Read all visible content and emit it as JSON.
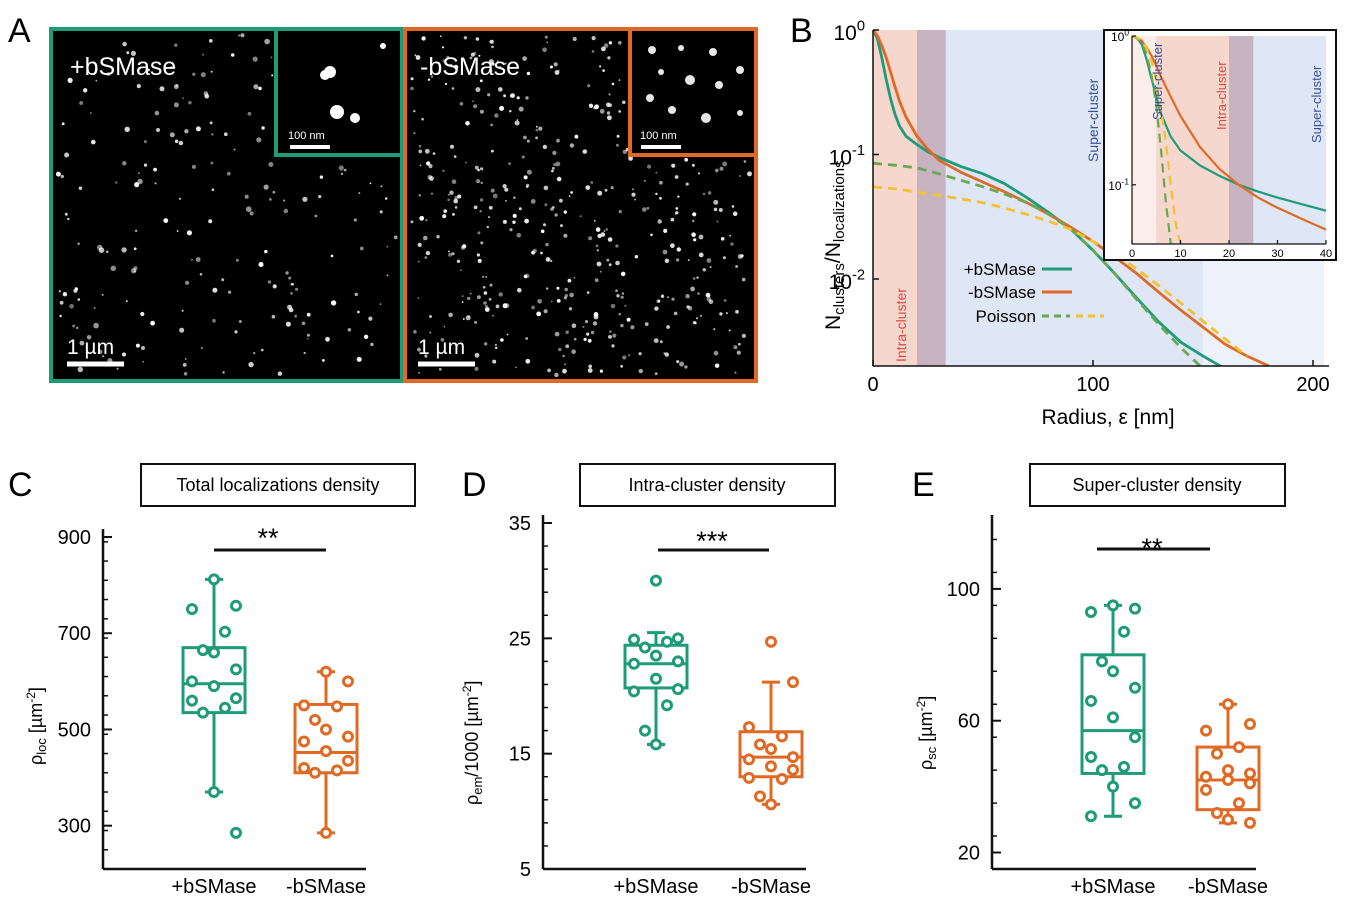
{
  "colors": {
    "green": "#1e9b78",
    "orange": "#e06a24",
    "poisson_green": "#6aa84f",
    "poisson_yellow": "#f2c230",
    "intra_fill": "#f2c9bd",
    "overlap_fill": "#c7b3bf",
    "super_fill": "#c9d5ee",
    "intra_text": "#d94a46",
    "super_text": "#3c4f9a"
  },
  "panels": {
    "A": {
      "letter": "A",
      "images": [
        {
          "label": "+bSMase",
          "scalebar": "1 µm",
          "inset_scalebar": "100 nm",
          "frame_color": "green"
        },
        {
          "label": "-bSMase",
          "scalebar": "1 µm",
          "inset_scalebar": "100 nm",
          "frame_color": "orange"
        }
      ]
    },
    "B": {
      "letter": "B",
      "ylabel_main": "N",
      "ylabel_sub1": "clusters",
      "ylabel_mid": "/N",
      "ylabel_sub2": "localizations",
      "xlabel": "Radius, ε [nm]",
      "region_intra": "Intra-cluster",
      "region_super": "Super-cluster",
      "inset_region_intra": "Intra-cluster",
      "inset_region_super_left": "Super-cluster",
      "inset_region_super_right": "Super-cluster",
      "legend": [
        "+bSMase",
        "-bSMase",
        "Poisson"
      ]
    },
    "C": {
      "letter": "C",
      "title": "Total localizations density",
      "ylabel_main": "ρ",
      "ylabel_sub": "loc",
      "ylabel_unit": " [µm",
      "ylabel_sup": "-2",
      "ylabel_close": "]",
      "sig": "**"
    },
    "D": {
      "letter": "D",
      "title": "Intra-cluster density",
      "ylabel_main": "ρ",
      "ylabel_sub": "em",
      "ylabel_unit": "/1000 [µm",
      "ylabel_sup": "-2",
      "ylabel_close": "]",
      "sig": "***"
    },
    "E": {
      "letter": "E",
      "title": "Super-cluster density",
      "ylabel_main": "ρ",
      "ylabel_sub": "sc",
      "ylabel_unit": " [µm",
      "ylabel_sup": "-2",
      "ylabel_close": "]",
      "sig": "**"
    }
  },
  "chart_data": [
    {
      "panel": "B",
      "type": "line",
      "x_ticks": [
        "0",
        "100",
        "200"
      ],
      "xlim": [
        0,
        200
      ],
      "y_scale": "log",
      "ylim": [
        0.002,
        1
      ],
      "y_ticks": [
        "10^0",
        "10^-1",
        "10^-2"
      ],
      "shaded_regions": [
        {
          "name": "Intra-cluster",
          "x": [
            0,
            33
          ]
        },
        {
          "name": "Super-cluster",
          "x": [
            20,
            205
          ]
        }
      ],
      "series": [
        {
          "name": "+bSMase",
          "color": "green",
          "dash": false,
          "x": [
            0,
            2,
            4,
            6,
            8,
            10,
            12,
            15,
            20,
            25,
            30,
            40,
            50,
            60,
            70,
            80,
            90,
            100,
            110,
            120,
            130,
            140,
            150,
            160
          ],
          "y": [
            1.0,
            0.85,
            0.6,
            0.4,
            0.28,
            0.21,
            0.17,
            0.14,
            0.12,
            0.105,
            0.095,
            0.08,
            0.07,
            0.058,
            0.045,
            0.034,
            0.025,
            0.017,
            0.011,
            0.007,
            0.0045,
            0.0031,
            0.0024,
            0.0019
          ]
        },
        {
          "name": "-bSMase",
          "color": "orange",
          "dash": false,
          "x": [
            0,
            2,
            4,
            6,
            8,
            10,
            12,
            15,
            20,
            25,
            30,
            40,
            50,
            60,
            70,
            80,
            90,
            100,
            110,
            120,
            130,
            140,
            150,
            160,
            170,
            180
          ],
          "y": [
            1.0,
            0.9,
            0.75,
            0.6,
            0.46,
            0.35,
            0.27,
            0.2,
            0.14,
            0.11,
            0.09,
            0.072,
            0.06,
            0.05,
            0.041,
            0.033,
            0.026,
            0.02,
            0.015,
            0.011,
            0.0078,
            0.0056,
            0.0041,
            0.003,
            0.0024,
            0.002
          ]
        },
        {
          "name": "Poisson",
          "color": "poisson_green",
          "dash": true,
          "x": [
            0,
            10,
            20,
            30,
            40,
            50,
            60,
            70,
            80,
            90,
            100,
            110,
            120,
            130,
            140,
            150
          ],
          "y": [
            0.085,
            0.082,
            0.078,
            0.07,
            0.062,
            0.055,
            0.048,
            0.041,
            0.033,
            0.025,
            0.017,
            0.011,
            0.0068,
            0.0043,
            0.0028,
            0.0019
          ]
        },
        {
          "name": "Poisson",
          "color": "poisson_yellow",
          "dash": true,
          "x": [
            0,
            10,
            20,
            30,
            40,
            50,
            60,
            70,
            80,
            90,
            100,
            110,
            120,
            130,
            140,
            150,
            160,
            170
          ],
          "y": [
            0.055,
            0.053,
            0.05,
            0.047,
            0.044,
            0.041,
            0.037,
            0.033,
            0.029,
            0.025,
            0.02,
            0.016,
            0.012,
            0.0088,
            0.0064,
            0.0046,
            0.0033,
            0.0024
          ]
        }
      ],
      "inset": {
        "x_ticks": [
          "0",
          "10",
          "20",
          "30",
          "40"
        ],
        "xlim": [
          0,
          40
        ],
        "y_scale": "log",
        "ylim": [
          0.04,
          1
        ],
        "y_ticks": [
          "10^0",
          "10^-1"
        ],
        "shaded_regions": [
          {
            "name": "Intra-cluster",
            "x": [
              0,
              25
            ]
          },
          {
            "name": "Super-cluster",
            "x": [
              20,
              40
            ]
          }
        ],
        "series": [
          {
            "color": "green",
            "dash": false,
            "x": [
              0,
              1,
              2,
              3,
              4,
              5,
              6,
              8,
              10,
              14,
              18,
              22,
              26,
              30,
              35,
              40
            ],
            "y": [
              1.0,
              0.97,
              0.88,
              0.7,
              0.52,
              0.39,
              0.3,
              0.21,
              0.17,
              0.135,
              0.115,
              0.1,
              0.09,
              0.082,
              0.074,
              0.067
            ]
          },
          {
            "color": "orange",
            "dash": false,
            "x": [
              0,
              1,
              2,
              3,
              4,
              5,
              6,
              8,
              10,
              14,
              18,
              22,
              26,
              30,
              35,
              40
            ],
            "y": [
              1.0,
              0.98,
              0.93,
              0.84,
              0.74,
              0.63,
              0.53,
              0.39,
              0.29,
              0.18,
              0.128,
              0.1,
              0.082,
              0.07,
              0.059,
              0.05
            ]
          },
          {
            "color": "poisson_green",
            "dash": true,
            "x": [
              0,
              1,
              2,
              3,
              4,
              5,
              6,
              7,
              8
            ],
            "y": [
              1.0,
              0.97,
              0.9,
              0.76,
              0.55,
              0.34,
              0.17,
              0.075,
              0.04
            ]
          },
          {
            "color": "poisson_yellow",
            "dash": true,
            "x": [
              0,
              1,
              2,
              3,
              4,
              5,
              6,
              7,
              8,
              9,
              10
            ],
            "y": [
              1.0,
              0.98,
              0.93,
              0.83,
              0.68,
              0.5,
              0.32,
              0.19,
              0.1,
              0.055,
              0.04
            ]
          }
        ]
      }
    },
    {
      "panel": "C",
      "type": "box",
      "categories": [
        "+bSMase",
        "-bSMase"
      ],
      "ylim": [
        210,
        900
      ],
      "y_ticks": [
        300,
        500,
        700,
        900
      ],
      "series": [
        {
          "name": "+bSMase",
          "color": "green",
          "whisker_low": 370,
          "q1": 535,
          "median": 595,
          "q3": 670,
          "whisker_high": 812,
          "points": [
            812,
            750,
            757,
            703,
            665,
            660,
            625,
            600,
            590,
            565,
            560,
            545,
            535,
            370,
            285
          ]
        },
        {
          "name": "-bSMase",
          "color": "orange",
          "whisker_low": 285,
          "q1": 410,
          "median": 452,
          "q3": 552,
          "whisker_high": 620,
          "points": [
            620,
            600,
            550,
            548,
            520,
            500,
            485,
            475,
            455,
            435,
            420,
            415,
            410,
            285
          ]
        }
      ]
    },
    {
      "panel": "D",
      "type": "box",
      "categories": [
        "+bSMase",
        "-bSMase"
      ],
      "ylim": [
        5,
        35
      ],
      "y_ticks": [
        5,
        15,
        25,
        35
      ],
      "series": [
        {
          "name": "+bSMase",
          "color": "green",
          "whisker_low": 15.8,
          "q1": 20.7,
          "median": 22.8,
          "q3": 24.4,
          "whisker_high": 25.5,
          "points": [
            30,
            25,
            24.9,
            24.7,
            24.2,
            23.5,
            23.0,
            22.8,
            21.5,
            20.6,
            20.4,
            19.2,
            17.0,
            15.8
          ]
        },
        {
          "name": "-bSMase",
          "color": "orange",
          "whisker_low": 10.6,
          "q1": 13.0,
          "median": 14.7,
          "q3": 16.9,
          "whisker_high": 21.2,
          "points": [
            24.7,
            21.2,
            17.3,
            16.5,
            15.8,
            15.4,
            14.7,
            14.5,
            13.9,
            13.6,
            12.9,
            12.8,
            11.3,
            10.6
          ]
        }
      ]
    },
    {
      "panel": "E",
      "type": "box",
      "categories": [
        "+bSMase",
        "-bSMase"
      ],
      "ylim": [
        15,
        120
      ],
      "y_ticks": [
        20,
        60,
        100
      ],
      "series": [
        {
          "name": "+bSMase",
          "color": "green",
          "whisker_low": 31,
          "q1": 44,
          "median": 57,
          "q3": 80,
          "whisker_high": 95,
          "points": [
            95,
            94,
            93,
            87,
            78,
            75,
            70,
            66,
            61,
            55,
            49,
            46,
            45,
            40,
            35,
            31
          ]
        },
        {
          "name": "-bSMase",
          "color": "orange",
          "whisker_low": 29,
          "q1": 33,
          "median": 42,
          "q3": 52,
          "whisker_high": 65,
          "points": [
            65,
            59,
            57,
            52,
            50,
            45,
            44,
            43,
            42,
            41,
            39,
            35,
            32,
            30,
            29
          ]
        }
      ]
    }
  ]
}
